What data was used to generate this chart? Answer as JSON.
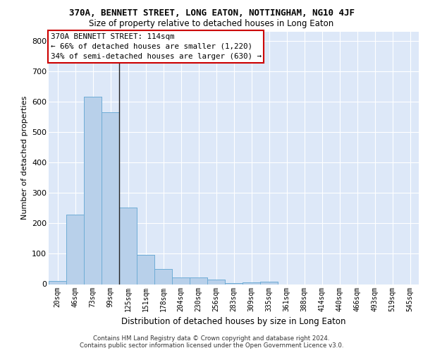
{
  "title1": "370A, BENNETT STREET, LONG EATON, NOTTINGHAM, NG10 4JF",
  "title2": "Size of property relative to detached houses in Long Eaton",
  "xlabel": "Distribution of detached houses by size in Long Eaton",
  "ylabel": "Number of detached properties",
  "bin_labels": [
    "20sqm",
    "46sqm",
    "73sqm",
    "99sqm",
    "125sqm",
    "151sqm",
    "178sqm",
    "204sqm",
    "230sqm",
    "256sqm",
    "283sqm",
    "309sqm",
    "335sqm",
    "361sqm",
    "388sqm",
    "414sqm",
    "440sqm",
    "466sqm",
    "493sqm",
    "519sqm",
    "545sqm"
  ],
  "bar_values": [
    10,
    228,
    616,
    566,
    251,
    96,
    49,
    22,
    22,
    15,
    4,
    5,
    8,
    0,
    0,
    0,
    0,
    0,
    0,
    0,
    0
  ],
  "bar_color": "#b8d0ea",
  "bar_edge_color": "#6aaad4",
  "background_color": "#dde8f8",
  "grid_color": "#ffffff",
  "annotation_box_color": "#ffffff",
  "annotation_border_color": "#cc0000",
  "annotation_text_line1": "370A BENNETT STREET: 114sqm",
  "annotation_text_line2": "← 66% of detached houses are smaller (1,220)",
  "annotation_text_line3": "34% of semi-detached houses are larger (630) →",
  "property_line_x": 3.48,
  "ylim": [
    0,
    830
  ],
  "yticks": [
    0,
    100,
    200,
    300,
    400,
    500,
    600,
    700,
    800
  ],
  "footer_line1": "Contains HM Land Registry data © Crown copyright and database right 2024.",
  "footer_line2": "Contains public sector information licensed under the Open Government Licence v3.0."
}
